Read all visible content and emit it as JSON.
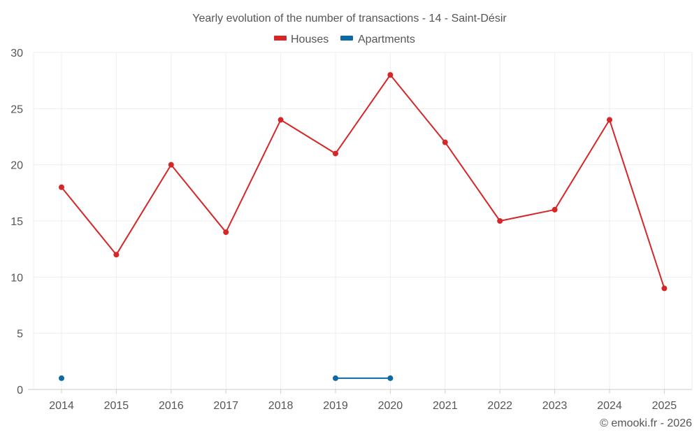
{
  "chart_data": {
    "type": "line",
    "title": "Yearly evolution of the number of transactions - 14 - Saint-Désir",
    "categories": [
      "2014",
      "2015",
      "2016",
      "2017",
      "2018",
      "2019",
      "2020",
      "2021",
      "2022",
      "2023",
      "2024",
      "2025"
    ],
    "series": [
      {
        "name": "Houses",
        "color": "#d62728",
        "values": [
          18,
          12,
          20,
          14,
          24,
          21,
          28,
          22,
          15,
          16,
          24,
          9
        ]
      },
      {
        "name": "Apartments",
        "color": "#0b6aa2",
        "values": [
          1,
          null,
          null,
          null,
          null,
          1,
          1,
          null,
          null,
          null,
          null,
          null
        ]
      }
    ],
    "ylim": [
      0,
      30
    ],
    "yticks": [
      0,
      5,
      10,
      15,
      20,
      25,
      30
    ],
    "xlabel": "",
    "ylabel": "",
    "grid": true,
    "legend_position": "top-center"
  },
  "credit": "© emooki.fr - 2026"
}
